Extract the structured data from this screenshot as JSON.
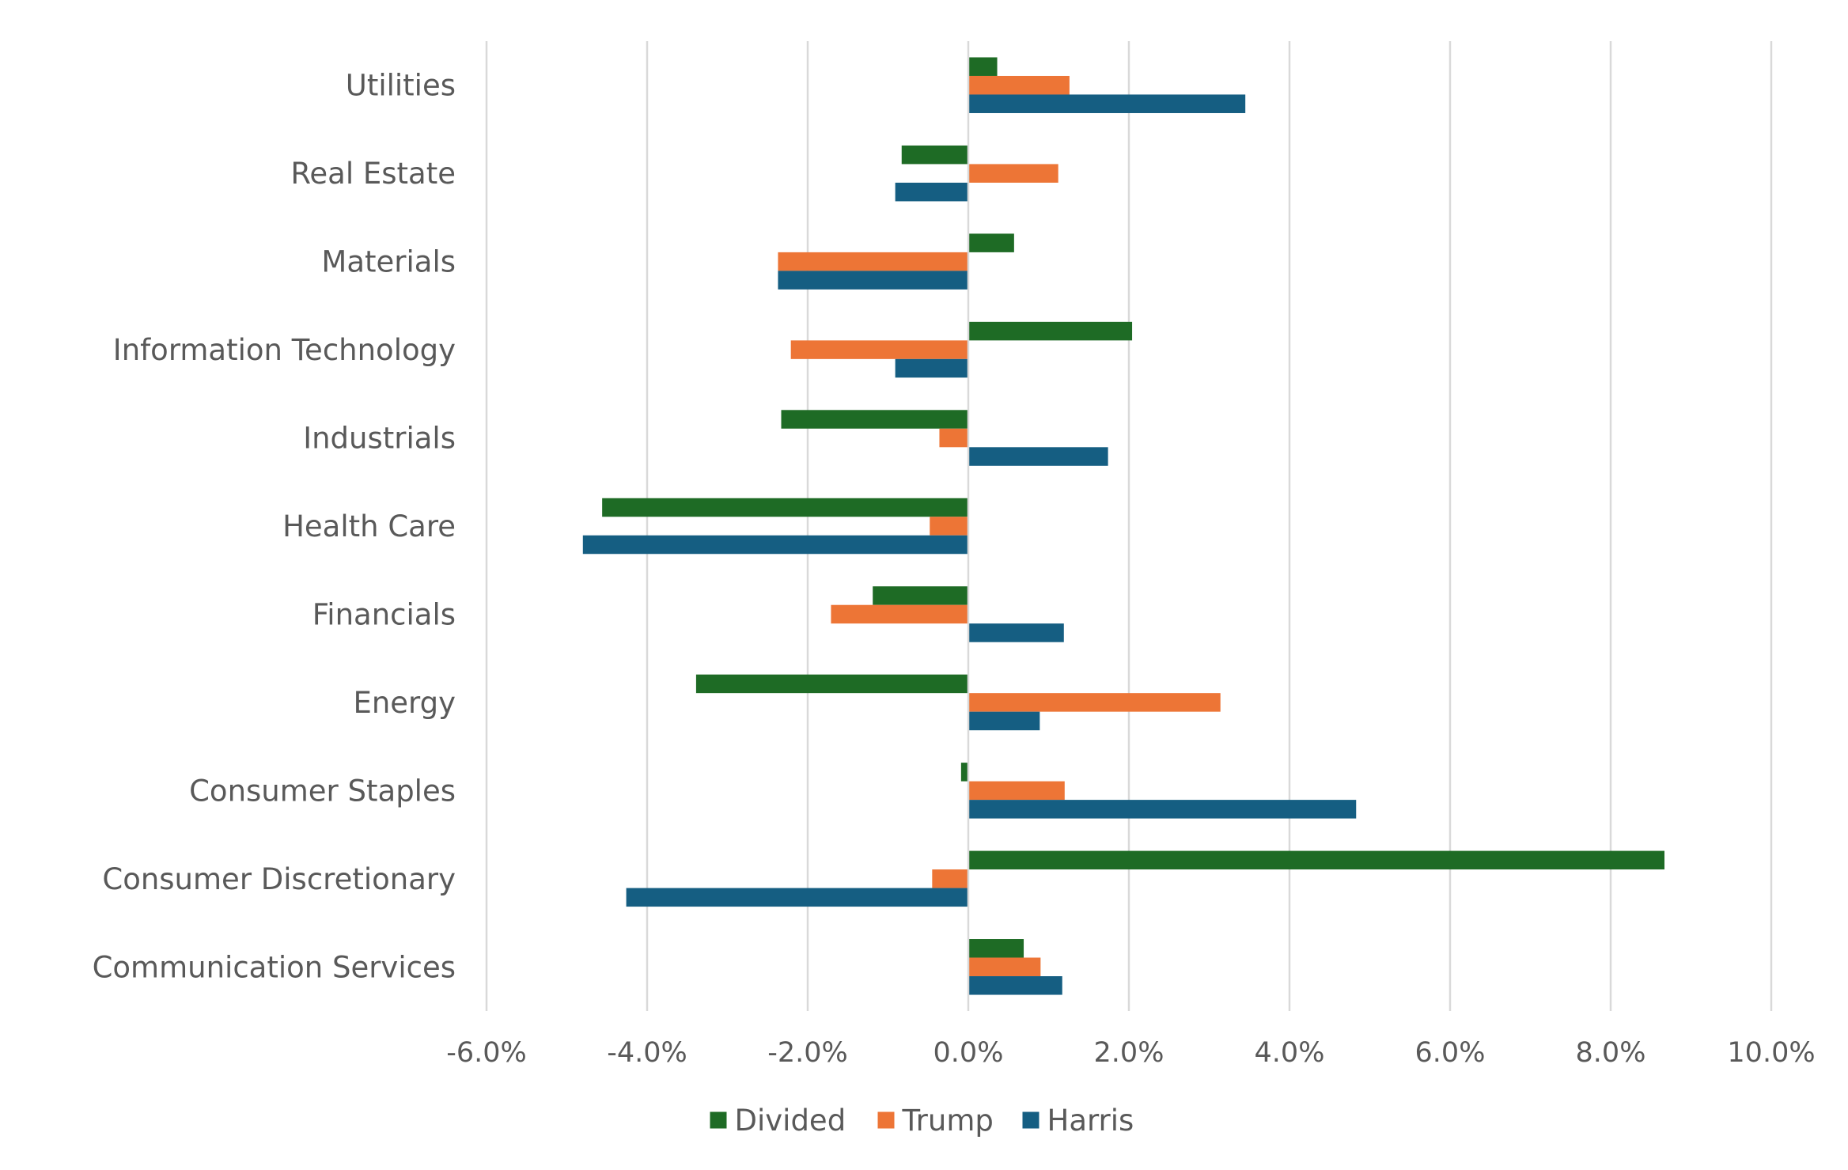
{
  "chart_data": {
    "type": "bar",
    "orientation": "horizontal",
    "categories": [
      "Utilities",
      "Real Estate",
      "Materials",
      "Information Technology",
      "Industrials",
      "Health Care",
      "Financials",
      "Energy",
      "Consumer Staples",
      "Consumer Discretionary",
      "Communication Services"
    ],
    "series": [
      {
        "name": "Divided",
        "color": "#1e6b25",
        "values": [
          0.36,
          -0.83,
          0.57,
          2.04,
          -2.33,
          -4.56,
          -1.19,
          -3.39,
          -0.09,
          8.67,
          0.69
        ]
      },
      {
        "name": "Trump",
        "color": "#ed7536",
        "values": [
          1.26,
          1.12,
          -2.37,
          -2.21,
          -0.36,
          -0.48,
          -1.71,
          3.14,
          1.2,
          -0.45,
          0.9
        ]
      },
      {
        "name": "Harris",
        "color": "#155e82",
        "values": [
          3.45,
          -0.91,
          -2.37,
          -0.91,
          1.74,
          -4.8,
          1.19,
          0.89,
          4.83,
          -4.26,
          1.17
        ]
      }
    ],
    "x_ticks": [
      "-6.0%",
      "-4.0%",
      "-2.0%",
      "0.0%",
      "2.0%",
      "4.0%",
      "6.0%",
      "8.0%",
      "10.0%"
    ],
    "xlim": [
      -6,
      10
    ],
    "x_tick_step": 2,
    "title": "",
    "xlabel": "",
    "ylabel": "",
    "grid": "vertical",
    "legend_position": "bottom-center"
  }
}
